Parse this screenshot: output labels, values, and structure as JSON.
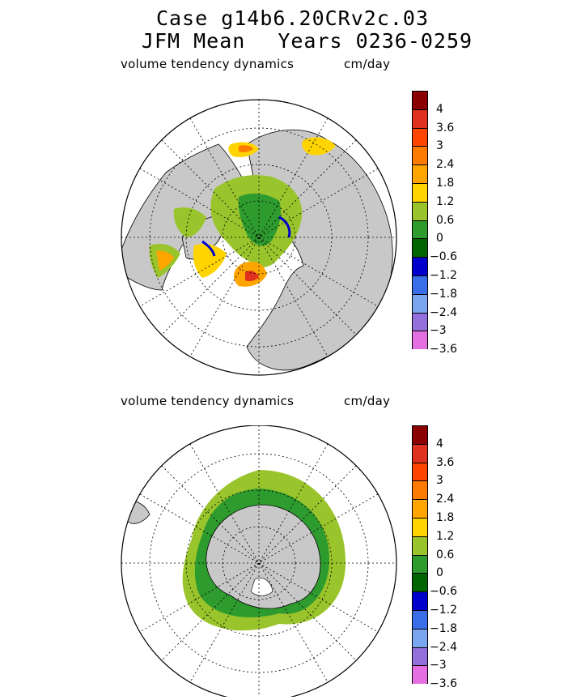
{
  "title": {
    "line1": "Case g14b6.20CRv2c.03",
    "line2_left": "JFM Mean",
    "line2_right": "Years 0236-0259"
  },
  "panels": [
    {
      "label": "volume tendency dynamics",
      "units": "cm/day",
      "hemisphere": "north"
    },
    {
      "label": "volume tendency dynamics",
      "units": "cm/day",
      "hemisphere": "south"
    }
  ],
  "colorbar": {
    "colors": [
      "#8b0000",
      "#e0301e",
      "#ff4500",
      "#ff7a00",
      "#ffa500",
      "#ffd400",
      "#9ac42b",
      "#2e9b2e",
      "#006400",
      "#0000cd",
      "#3a6ee8",
      "#7aa6f0",
      "#9370db",
      "#e46fe0"
    ],
    "labels": [
      "4",
      "3.6",
      "3",
      "2.4",
      "1.8",
      "1.2",
      "0.6",
      "0",
      "-0.6",
      "-1.2",
      "-1.8",
      "-2.4",
      "-3",
      "-3.6"
    ]
  },
  "palette": {
    "land": "#c8c8c8",
    "ocean": "#ffffff",
    "grid": "#000000"
  }
}
